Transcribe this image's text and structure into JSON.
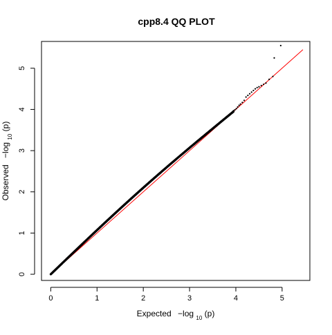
{
  "chart_data": {
    "type": "scatter",
    "title": "cpp8.4 QQ PLOT",
    "xlabel": {
      "prefix": "Expected",
      "func": "−log",
      "sub": "10",
      "arg": "(p)"
    },
    "ylabel": {
      "prefix": "Observed",
      "func": "−log",
      "sub": "10",
      "arg": "(p)"
    },
    "xlim": [
      -0.2,
      5.6
    ],
    "ylim": [
      -0.15,
      5.65
    ],
    "x_ticks": [
      0,
      1,
      2,
      3,
      4,
      5
    ],
    "y_ticks": [
      0,
      1,
      2,
      3,
      4,
      5
    ],
    "grid": false,
    "legend": "none",
    "reference_line": {
      "x": [
        0,
        5.45
      ],
      "y": [
        0,
        5.45
      ],
      "color": "#ff0000"
    },
    "point_color": "#000000",
    "dense_band": {
      "x_from": 0.0,
      "x_to": 3.95,
      "points": 450,
      "bulge": 0.1
    },
    "tail_points": {
      "x": [
        3.95,
        3.98,
        4.01,
        4.04,
        4.07,
        4.1,
        4.14,
        4.18,
        4.22,
        4.26,
        4.3,
        4.34,
        4.38,
        4.42,
        4.46,
        4.5,
        4.55,
        4.6,
        4.65,
        4.72,
        4.8,
        4.83,
        4.97
      ],
      "y": [
        3.97,
        3.99,
        4.02,
        4.06,
        4.1,
        4.13,
        4.17,
        4.22,
        4.3,
        4.34,
        4.38,
        4.42,
        4.46,
        4.5,
        4.53,
        4.55,
        4.58,
        4.61,
        4.64,
        4.73,
        4.8,
        5.25,
        5.55
      ]
    }
  }
}
